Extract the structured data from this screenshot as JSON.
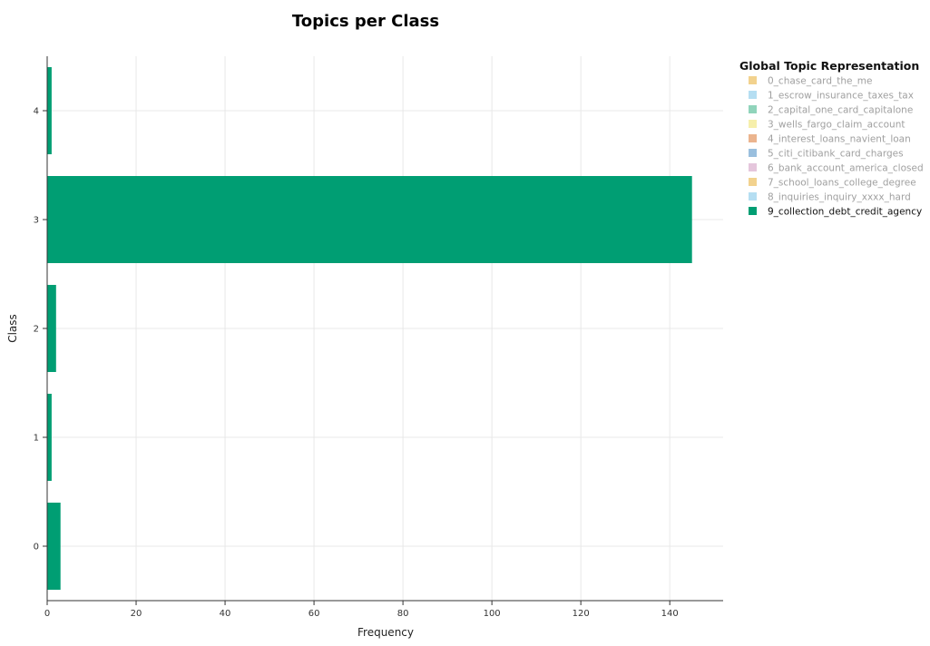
{
  "chart_data": {
    "type": "bar",
    "orientation": "horizontal",
    "title": "Topics per Class",
    "xlabel": "Frequency",
    "ylabel": "Class",
    "categories": [
      "0",
      "1",
      "2",
      "3",
      "4"
    ],
    "xlim": [
      0,
      152
    ],
    "x_ticks": [
      0,
      20,
      40,
      60,
      80,
      100,
      120,
      140
    ],
    "grid": true,
    "legend": {
      "title": "Global Topic Representation",
      "placement": "right",
      "items": [
        {
          "label": "0_chase_card_the_me",
          "color": "#F0CA7A",
          "visible": false
        },
        {
          "label": "1_escrow_insurance_taxes_tax",
          "color": "#A8D8F0",
          "visible": false
        },
        {
          "label": "2_capital_one_card_capitalone",
          "color": "#7DCCAF",
          "visible": false
        },
        {
          "label": "3_wells_fargo_claim_account",
          "color": "#F5EC9C",
          "visible": false
        },
        {
          "label": "4_interest_loans_navient_loan",
          "color": "#E8A77A",
          "visible": false
        },
        {
          "label": "5_citi_citibank_card_charges",
          "color": "#88B4D8",
          "visible": false
        },
        {
          "label": "6_bank_account_america_closed",
          "color": "#E0BCD6",
          "visible": false
        },
        {
          "label": "7_school_loans_college_degree",
          "color": "#F0CA7A",
          "visible": false
        },
        {
          "label": "8_inquiries_inquiry_xxxx_hard",
          "color": "#A8D8F0",
          "visible": false
        },
        {
          "label": "9_collection_debt_credit_agency",
          "color": "#009E73",
          "visible": true
        }
      ]
    },
    "series": [
      {
        "name": "9_collection_debt_credit_agency",
        "color": "#009E73",
        "values": [
          3,
          1,
          2,
          145,
          1
        ]
      }
    ]
  }
}
